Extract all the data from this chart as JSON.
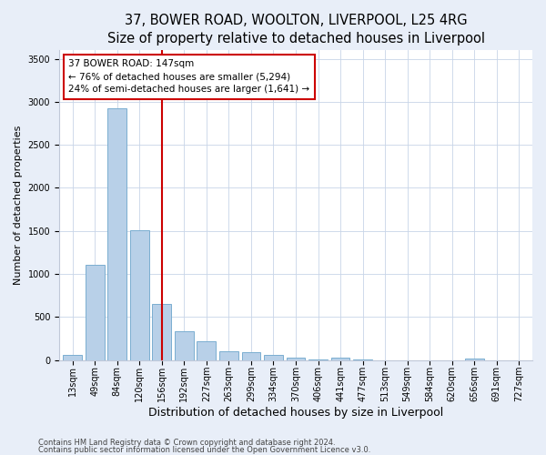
{
  "title1": "37, BOWER ROAD, WOOLTON, LIVERPOOL, L25 4RG",
  "title2": "Size of property relative to detached houses in Liverpool",
  "xlabel": "Distribution of detached houses by size in Liverpool",
  "ylabel": "Number of detached properties",
  "footnote1": "Contains HM Land Registry data © Crown copyright and database right 2024.",
  "footnote2": "Contains public sector information licensed under the Open Government Licence v3.0.",
  "categories": [
    "13sqm",
    "49sqm",
    "84sqm",
    "120sqm",
    "156sqm",
    "192sqm",
    "227sqm",
    "263sqm",
    "299sqm",
    "334sqm",
    "370sqm",
    "406sqm",
    "441sqm",
    "477sqm",
    "513sqm",
    "549sqm",
    "584sqm",
    "620sqm",
    "656sqm",
    "691sqm",
    "727sqm"
  ],
  "values": [
    55,
    1110,
    2930,
    1510,
    650,
    340,
    215,
    105,
    90,
    65,
    30,
    5,
    25,
    5,
    0,
    0,
    0,
    0,
    20,
    0,
    0
  ],
  "bar_color": "#b8d0e8",
  "bar_edge_color": "#7aaed0",
  "vline_x": 4,
  "vline_color": "#cc0000",
  "annotation_line1": "37 BOWER ROAD: 147sqm",
  "annotation_line2": "← 76% of detached houses are smaller (5,294)",
  "annotation_line3": "24% of semi-detached houses are larger (1,641) →",
  "annotation_box_facecolor": "white",
  "annotation_box_edgecolor": "#cc0000",
  "ylim": [
    0,
    3600
  ],
  "yticks": [
    0,
    500,
    1000,
    1500,
    2000,
    2500,
    3000,
    3500
  ],
  "bg_color": "#e8eef8",
  "plot_bg_color": "#ffffff",
  "grid_color": "#c8d4e8",
  "title1_fontsize": 10.5,
  "title2_fontsize": 9.5,
  "xlabel_fontsize": 9,
  "ylabel_fontsize": 8,
  "tick_fontsize": 7,
  "annot_fontsize": 7.5,
  "footnote_fontsize": 6
}
